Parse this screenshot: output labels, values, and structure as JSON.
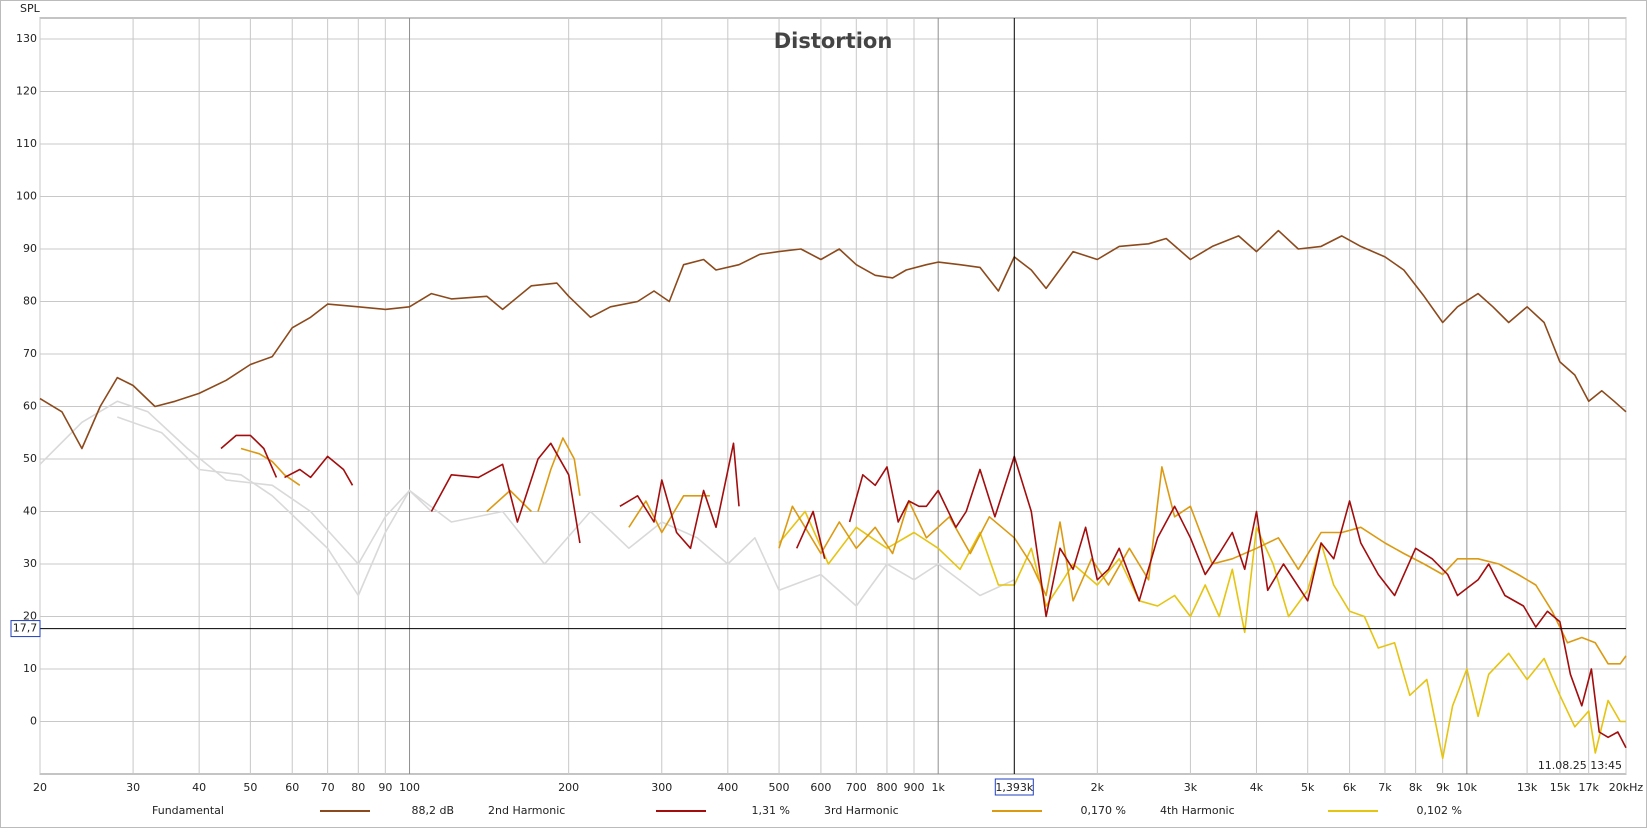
{
  "chart_data": {
    "type": "line",
    "title": "Distortion",
    "y_label": "SPL",
    "timestamp": "11.08.25 13:45",
    "xlim": [
      20,
      20000
    ],
    "ylim": [
      -10,
      134
    ],
    "log_x": true,
    "grid": true,
    "xticks": [
      20,
      30,
      40,
      50,
      60,
      70,
      80,
      90,
      100,
      200,
      300,
      400,
      500,
      600,
      700,
      800,
      900,
      {
        "value": 1000,
        "label": "1k"
      },
      {
        "value": 2000,
        "label": "2k"
      },
      {
        "value": 3000,
        "label": "3k"
      },
      {
        "value": 4000,
        "label": "4k"
      },
      {
        "value": 5000,
        "label": "5k"
      },
      {
        "value": 6000,
        "label": "6k"
      },
      {
        "value": 7000,
        "label": "7k"
      },
      {
        "value": 8000,
        "label": "8k"
      },
      {
        "value": 9000,
        "label": "9k"
      },
      {
        "value": 10000,
        "label": "10k"
      },
      {
        "value": 13000,
        "label": "13k"
      },
      {
        "value": 15000,
        "label": "15k"
      },
      {
        "value": 17000,
        "label": "17k"
      },
      {
        "value": 20000,
        "label": "20kHz"
      }
    ],
    "yticks": [
      0,
      10,
      20,
      30,
      40,
      50,
      60,
      70,
      80,
      90,
      100,
      110,
      120,
      130
    ],
    "cursor": {
      "x": {
        "value": 1393,
        "label": "1,393k"
      },
      "y": {
        "value": 17.7,
        "label": "17,7"
      }
    },
    "series": [
      {
        "name": "Fundamental",
        "color": "#8c4a1c",
        "readout": "88,2 dB",
        "x": [
          20,
          22,
          24,
          26,
          28,
          30,
          33,
          36,
          40,
          45,
          50,
          55,
          60,
          65,
          70,
          80,
          90,
          100,
          110,
          120,
          140,
          150,
          170,
          190,
          200,
          220,
          240,
          270,
          290,
          310,
          330,
          360,
          380,
          420,
          460,
          500,
          550,
          600,
          650,
          700,
          760,
          820,
          870,
          950,
          1000,
          1100,
          1200,
          1300,
          1393,
          1500,
          1600,
          1800,
          2000,
          2200,
          2500,
          2700,
          3000,
          3300,
          3700,
          4000,
          4400,
          4800,
          5300,
          5800,
          6300,
          7000,
          7600,
          8300,
          9000,
          9600,
          10500,
          11200,
          12000,
          13000,
          14000,
          15000,
          16000,
          17000,
          18000,
          19000,
          20000
        ],
        "values": [
          61.5,
          59,
          52,
          60,
          65.5,
          64,
          60,
          61,
          62.5,
          65,
          68,
          69.5,
          75,
          77,
          79.5,
          79,
          78.5,
          79,
          81.5,
          80.5,
          81,
          78.5,
          83,
          83.5,
          81,
          77,
          79,
          80,
          82,
          80,
          87,
          88,
          86,
          87,
          89,
          89.5,
          90,
          88,
          90,
          87,
          85,
          84.5,
          86,
          87,
          87.5,
          87,
          86.5,
          82,
          88.5,
          86,
          82.5,
          89.5,
          88,
          90.5,
          91,
          92,
          88,
          90.5,
          92.5,
          89.5,
          93.5,
          90,
          90.5,
          92.5,
          90.5,
          88.5,
          86,
          81,
          76,
          79,
          81.5,
          79,
          76,
          79,
          76,
          68.5,
          66,
          61,
          63,
          61,
          59
        ]
      },
      {
        "name": "2nd Harmonic",
        "color": "#a30d0d",
        "readout": "1,31 %",
        "x": [
          44,
          47,
          50,
          53,
          56,
          null,
          58,
          62,
          65,
          70,
          75,
          78,
          null,
          110,
          120,
          135,
          150,
          160,
          175,
          185,
          200,
          210,
          null,
          250,
          270,
          290,
          300,
          320,
          340,
          360,
          380,
          410,
          420,
          null,
          540,
          580,
          610,
          null,
          680,
          720,
          760,
          800,
          840,
          880,
          920,
          950,
          1000,
          1080,
          1130,
          1200,
          1280,
          1393,
          1500,
          1560,
          1600,
          1700,
          1800,
          1900,
          2000,
          2100,
          2200,
          2400,
          2600,
          2800,
          3000,
          3200,
          3400,
          3600,
          3800,
          4000,
          4200,
          4500,
          5000,
          5300,
          5600,
          6000,
          6300,
          6800,
          7300,
          8000,
          8600,
          9200,
          9600,
          10500,
          11000,
          11800,
          12800,
          13500,
          14200,
          15000,
          15700,
          16500,
          17200,
          17800,
          18500,
          19300,
          20000
        ],
        "values": [
          52,
          54.5,
          54.5,
          52,
          46.5,
          null,
          46.5,
          48,
          46.5,
          50.5,
          48,
          45,
          null,
          40,
          47,
          46.5,
          49,
          38,
          50,
          53,
          47,
          34,
          null,
          41,
          43,
          38,
          46,
          36,
          33,
          44,
          37,
          53,
          41,
          null,
          33,
          40,
          31,
          null,
          38,
          47,
          45,
          48.5,
          38,
          42,
          41,
          41,
          44,
          37,
          40,
          48,
          39,
          50.5,
          40,
          28,
          20,
          33,
          29,
          37,
          27,
          29,
          33,
          23,
          35,
          41,
          35,
          28,
          32,
          36,
          29,
          40,
          25,
          30,
          23,
          34,
          31,
          42,
          34,
          28,
          24,
          33,
          31,
          28,
          24,
          27,
          30,
          24,
          22,
          18,
          21,
          19,
          9,
          3,
          10,
          -2,
          -3,
          -2,
          -5
        ]
      },
      {
        "name": "3rd Harmonic",
        "color": "#dc9a12",
        "readout": "0,170 %",
        "x": [
          48,
          52,
          55,
          58,
          62,
          null,
          140,
          155,
          170,
          null,
          175,
          185,
          195,
          205,
          210,
          null,
          260,
          280,
          300,
          330,
          370,
          null,
          500,
          530,
          560,
          600,
          650,
          700,
          760,
          820,
          880,
          950,
          1050,
          1150,
          1250,
          1393,
          1500,
          1600,
          1700,
          1800,
          1950,
          2100,
          2300,
          2500,
          2650,
          2800,
          3000,
          3300,
          3600,
          4000,
          4400,
          4800,
          5300,
          5800,
          6300,
          7000,
          7600,
          8300,
          9000,
          9600,
          10500,
          11500,
          12500,
          13500,
          14500,
          15500,
          16500,
          17500,
          18500,
          19500,
          20000
        ],
        "values": [
          52,
          51,
          49.5,
          47,
          45,
          null,
          40,
          44,
          40,
          null,
          40,
          48,
          54,
          50,
          43,
          null,
          37,
          42,
          36,
          43,
          43,
          null,
          33,
          41,
          37,
          32,
          38,
          33,
          37,
          32,
          42,
          35,
          39,
          32,
          39,
          35,
          30,
          24,
          38,
          23,
          31,
          26,
          33,
          27,
          48.5,
          39,
          41,
          30,
          31,
          33,
          35,
          29,
          36,
          36,
          37,
          34,
          32,
          30,
          28,
          31,
          31,
          30,
          28,
          26,
          21,
          15,
          16,
          15,
          11,
          11,
          12.5
        ]
      },
      {
        "name": "4th Harmonic",
        "color": "#e6c412",
        "readout": "0,102 %",
        "x": [
          500,
          560,
          620,
          700,
          800,
          900,
          1000,
          1100,
          1200,
          1300,
          1393,
          1500,
          1600,
          1700,
          1800,
          2000,
          2200,
          2400,
          2600,
          2800,
          3000,
          3200,
          3400,
          3600,
          3800,
          4000,
          4300,
          4600,
          5000,
          5300,
          5600,
          6000,
          6400,
          6800,
          7300,
          7800,
          8400,
          9000,
          9400,
          10000,
          10500,
          11000,
          12000,
          13000,
          14000,
          15000,
          16000,
          17000,
          17500,
          18500,
          19500,
          20000
        ],
        "values": [
          34,
          40,
          30,
          37,
          33,
          36,
          33,
          29,
          36,
          26,
          26,
          33,
          22,
          26,
          30,
          26,
          31,
          23,
          22,
          24,
          20,
          26,
          20,
          29,
          17,
          37,
          30,
          20,
          25,
          34,
          26,
          21,
          20,
          14,
          15,
          5,
          8,
          -7,
          3,
          10,
          1,
          9,
          13,
          8,
          12,
          5,
          -1,
          2,
          -6,
          4,
          0,
          0
        ]
      },
      {
        "color": "#d9d9d9",
        "x": [
          20,
          24,
          28,
          32,
          38,
          45,
          55,
          65,
          80,
          90,
          100,
          120,
          150,
          180,
          220,
          260,
          300,
          350,
          400,
          450,
          500,
          600,
          700,
          800,
          900,
          1000,
          1200,
          1393
        ],
        "values": [
          49,
          57,
          61,
          59,
          52,
          46,
          45,
          40,
          30,
          39,
          44,
          38,
          40,
          30,
          40,
          33,
          38,
          35,
          30,
          35,
          25,
          28,
          22,
          30,
          27,
          30,
          24,
          27
        ]
      },
      {
        "color": "#d9d9d9",
        "x": [
          28,
          34,
          40,
          48,
          55,
          62,
          70,
          80,
          90,
          100,
          110
        ],
        "values": [
          58,
          55,
          48,
          47,
          43,
          38,
          33,
          24,
          36,
          44,
          40
        ]
      }
    ]
  }
}
